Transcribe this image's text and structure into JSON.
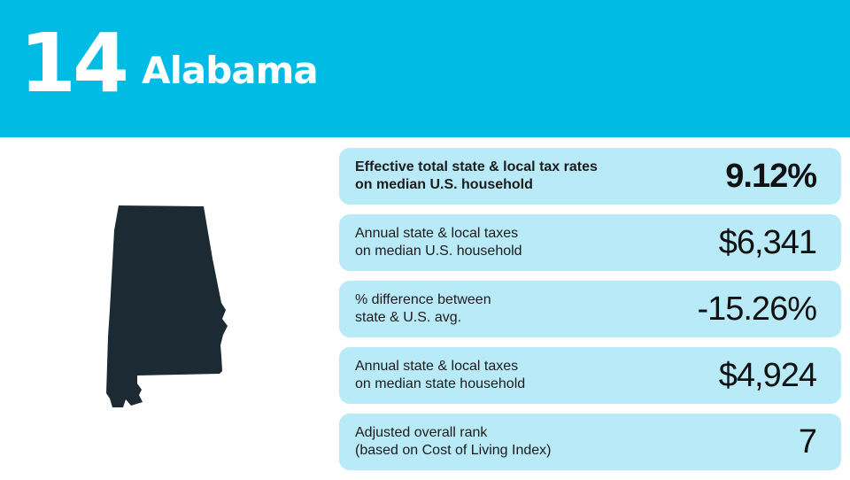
{
  "header": {
    "rank": "14",
    "state": "Alabama",
    "background_color": "#00bce4"
  },
  "map": {
    "icon": "alabama-state-map-icon",
    "color": "#1b2a33"
  },
  "stats": [
    {
      "label_line1": "Effective total state & local tax rates",
      "label_line2": "on median U.S. household",
      "value": "9.12%"
    },
    {
      "label_line1": "Annual state & local taxes",
      "label_line2": "on median U.S. household",
      "value": "$6,341"
    },
    {
      "label_line1": "% difference between",
      "label_line2": "state & U.S. avg.",
      "value": "-15.26%"
    },
    {
      "label_line1": "Annual state & local taxes",
      "label_line2": "on median state household",
      "value": "$4,924"
    },
    {
      "label_line1": "Adjusted overall rank",
      "label_line2": "(based on Cost of Living Index)",
      "value": "7"
    }
  ],
  "colors": {
    "card_background": "#b8eaf7",
    "text": "#111111"
  }
}
